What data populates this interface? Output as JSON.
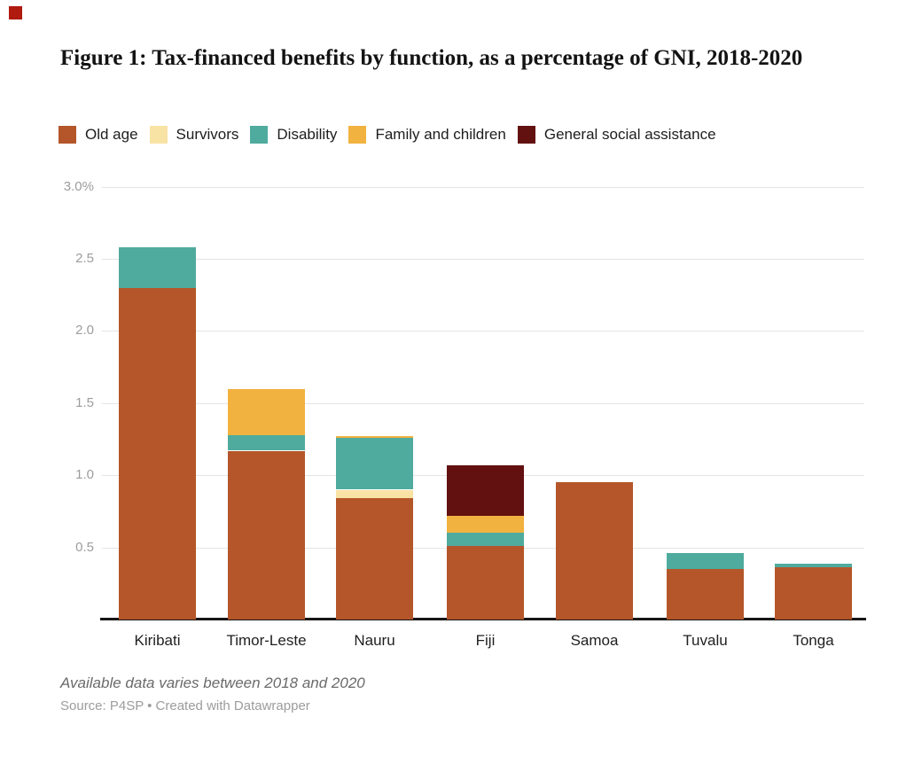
{
  "marker": {
    "color": "#b11a0f"
  },
  "title": "Figure 1: Tax-financed benefits by function, as a percentage of GNI, 2018-2020",
  "footnote": "Available data varies between 2018 and 2020",
  "source": "Source: P4SP • Created with Datawrapper",
  "colors": {
    "axis_line": "#161616",
    "gridline": "#e4e4e4",
    "tick_text": "#9c9c9c",
    "old_age": "#b4562a",
    "survivors": "#f8e3a5",
    "disability": "#4fab9d",
    "family_and_children": "#f2b240",
    "general_social_assistance": "#621110"
  },
  "chart_data": {
    "type": "bar",
    "stacked": true,
    "title": "Figure 1: Tax-financed benefits by function, as a percentage of GNI, 2018-2020",
    "categories": [
      "Kiribati",
      "Timor-Leste",
      "Nauru",
      "Fiji",
      "Samoa",
      "Tuvalu",
      "Tonga"
    ],
    "series": [
      {
        "name": "Old age",
        "color": "#b4562a",
        "values": [
          2.3,
          1.17,
          0.84,
          0.51,
          0.95,
          0.35,
          0.36
        ]
      },
      {
        "name": "Survivors",
        "color": "#f8e3a5",
        "values": [
          0,
          0,
          0.06,
          0,
          0,
          0,
          0
        ]
      },
      {
        "name": "Disability",
        "color": "#4fab9d",
        "values": [
          0.28,
          0.11,
          0.36,
          0.09,
          0,
          0.11,
          0.03
        ]
      },
      {
        "name": "Family and children",
        "color": "#f2b240",
        "values": [
          0,
          0.32,
          0.01,
          0.12,
          0,
          0,
          0
        ]
      },
      {
        "name": "General social assistance",
        "color": "#621110",
        "values": [
          0,
          0,
          0,
          0.35,
          0,
          0,
          0
        ]
      }
    ],
    "totals": [
      2.58,
      1.6,
      1.27,
      1.07,
      0.95,
      0.46,
      0.39
    ],
    "xlabel": "",
    "ylabel": "",
    "ylim": [
      0,
      3.0
    ],
    "y_ticks": [
      {
        "value": 3.0,
        "label": "3.0%"
      },
      {
        "value": 2.5,
        "label": "2.5"
      },
      {
        "value": 2.0,
        "label": "2.0"
      },
      {
        "value": 1.5,
        "label": "1.5"
      },
      {
        "value": 1.0,
        "label": "1.0"
      },
      {
        "value": 0.5,
        "label": "0.5"
      }
    ],
    "grid": true,
    "legend_position": "top"
  }
}
